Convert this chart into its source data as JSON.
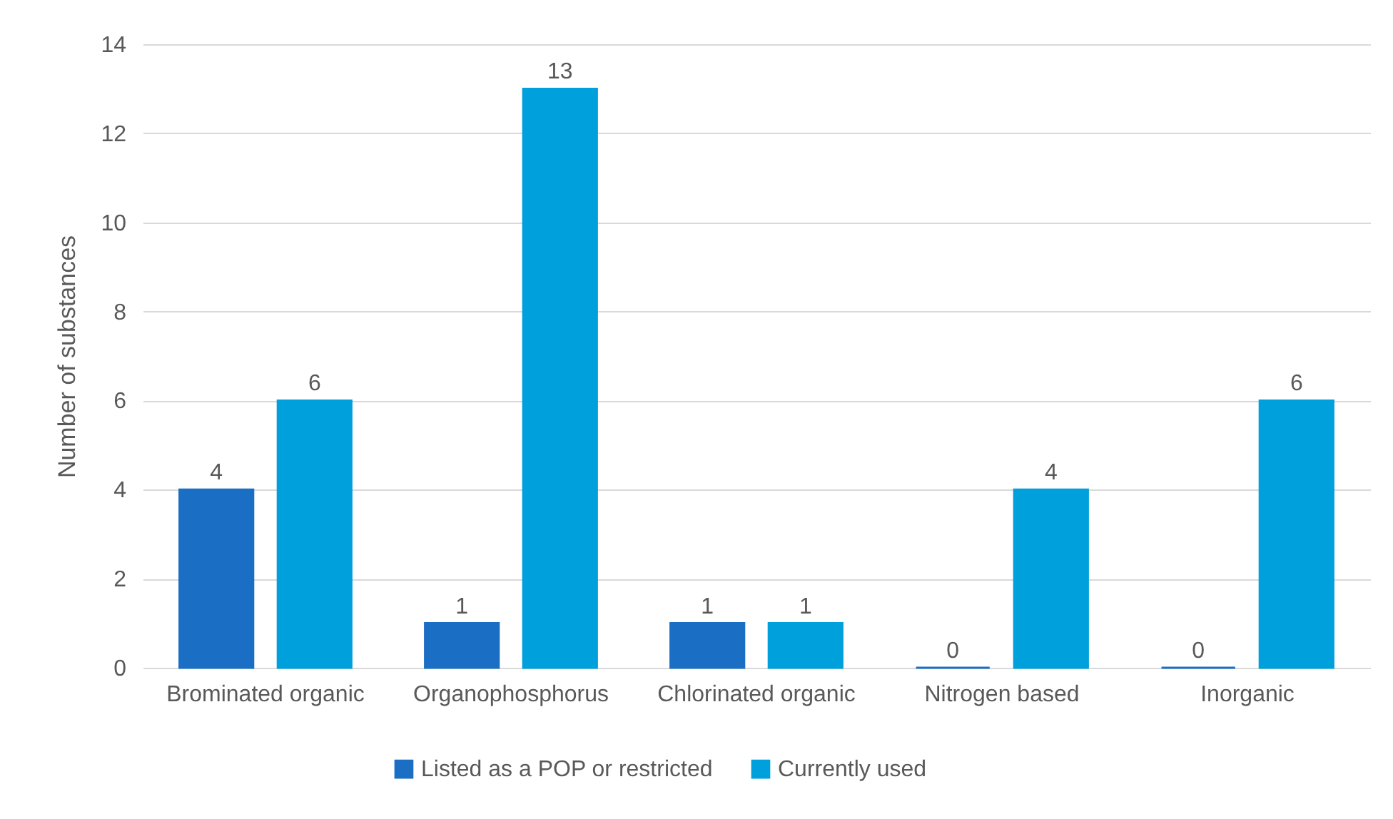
{
  "chart_data": {
    "type": "bar",
    "ylabel": "Number of substances",
    "categories": [
      "Brominated organic",
      "Organophosphorus",
      "Chlorinated organic",
      "Nitrogen based",
      "Inorganic"
    ],
    "series": [
      {
        "name": "Listed as a POP or restricted",
        "color": "#1a6ec4",
        "values": [
          4,
          1,
          1,
          0,
          0
        ]
      },
      {
        "name": "Currently used",
        "color": "#00a0dc",
        "values": [
          6,
          13,
          1,
          4,
          6
        ]
      }
    ],
    "ylim": [
      0,
      14
    ],
    "yticks": [
      0,
      2,
      4,
      6,
      8,
      10,
      12,
      14
    ],
    "grid": "y",
    "legend": "bottom",
    "data_labels": true
  }
}
